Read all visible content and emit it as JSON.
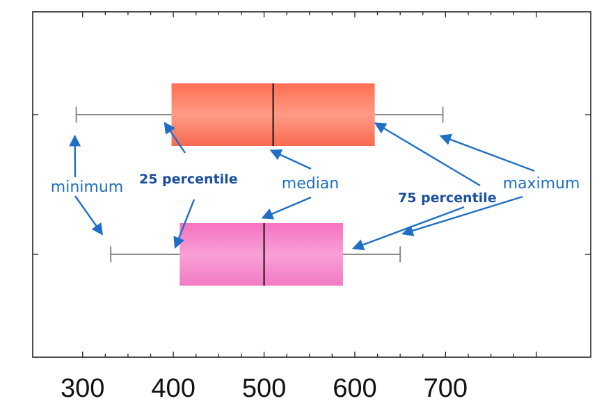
{
  "chart_data": {
    "type": "box",
    "xlim": [
      245,
      860
    ],
    "xticks": [
      300,
      400,
      500,
      600,
      700
    ],
    "grid": false,
    "series": [
      {
        "min": 293,
        "q1": 398,
        "median": 510,
        "q3": 622,
        "max": 697,
        "color": "#f8745e"
      },
      {
        "min": 331,
        "q1": 407,
        "median": 500,
        "q3": 587,
        "max": 650,
        "color": "#f58bc9"
      }
    ],
    "annotations": {
      "minimum": "minimum",
      "q1": "25 percentile",
      "median": "median",
      "q3": "75 percentile",
      "maximum": "maximum"
    },
    "annotation_color": "#1f6fc4"
  }
}
